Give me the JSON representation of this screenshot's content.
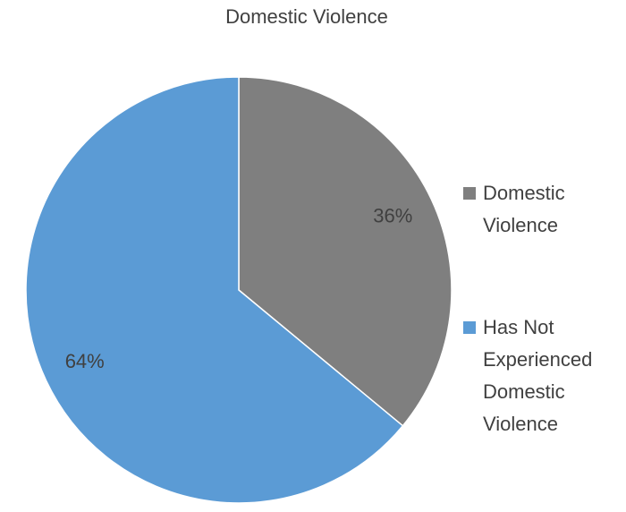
{
  "chart_data": {
    "type": "pie",
    "title": "Domestic Violence",
    "categories": [
      "Domestic Violence",
      "Has Not Experienced Domestic Violence"
    ],
    "values": [
      36,
      64
    ],
    "value_labels": [
      "36%",
      "64%"
    ],
    "colors": [
      "#7f7f7f",
      "#5b9bd5"
    ],
    "legend": "right"
  }
}
